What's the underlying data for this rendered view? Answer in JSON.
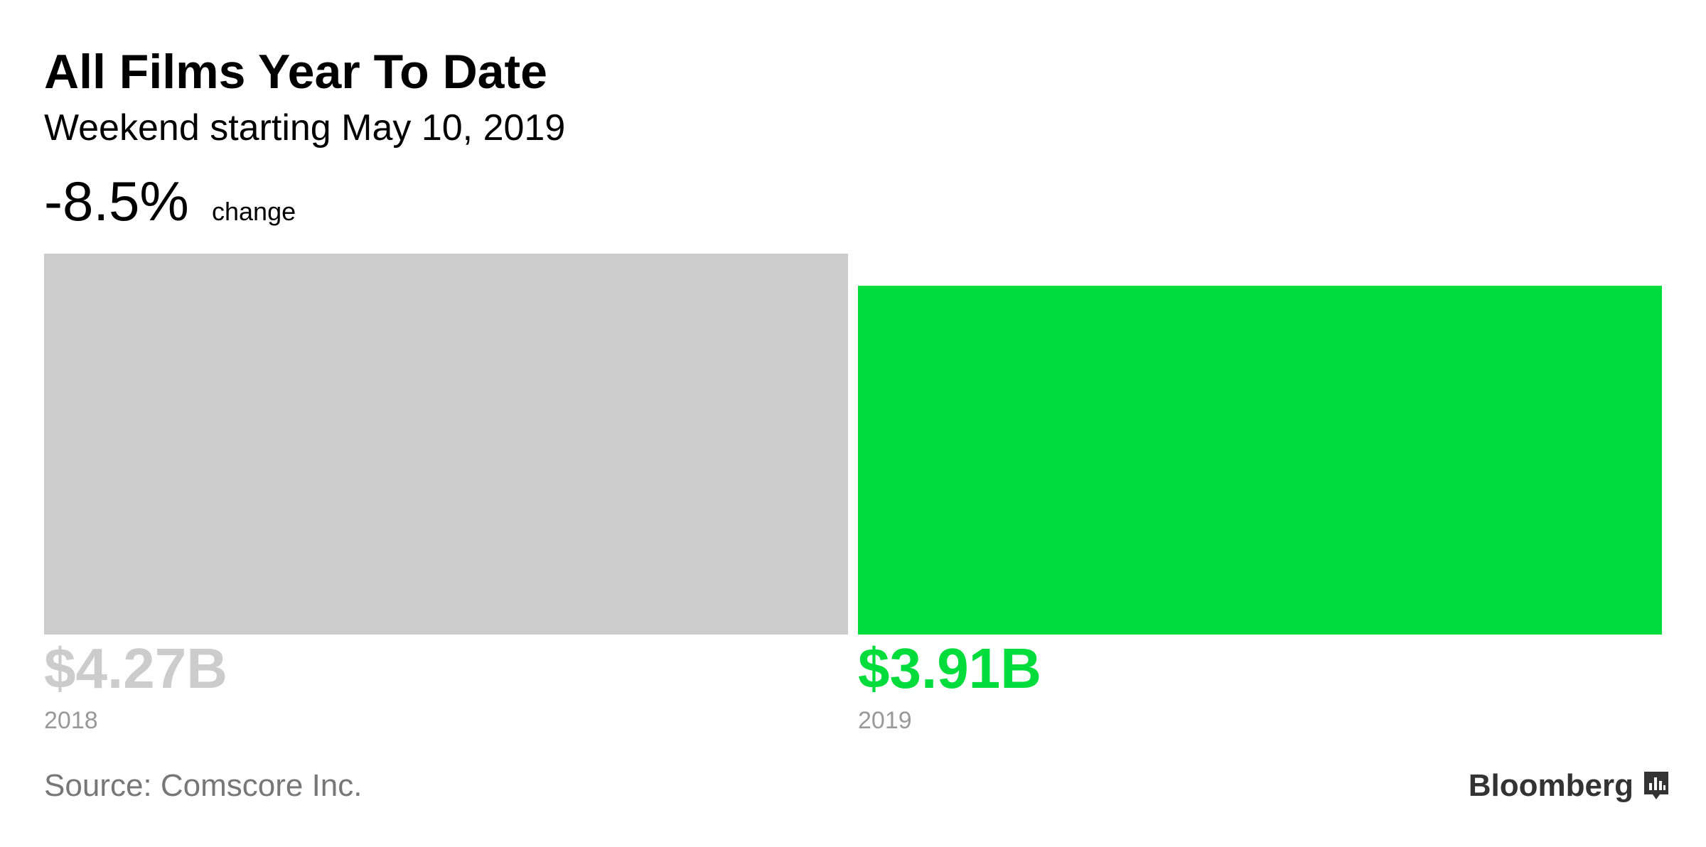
{
  "chart_data": {
    "type": "bar",
    "title": "All Films Year To Date",
    "subtitle": "Weekend starting May 10, 2019",
    "change_label": "-8.5%",
    "change_text": "change",
    "categories": [
      "2018",
      "2019"
    ],
    "values": [
      4.27,
      3.91
    ],
    "value_labels": [
      "$4.27B",
      "$3.91B"
    ],
    "colors": [
      "#cccccc",
      "#00dc3c"
    ],
    "source": "Source: Comscore Inc.",
    "brand": "Bloomberg"
  }
}
